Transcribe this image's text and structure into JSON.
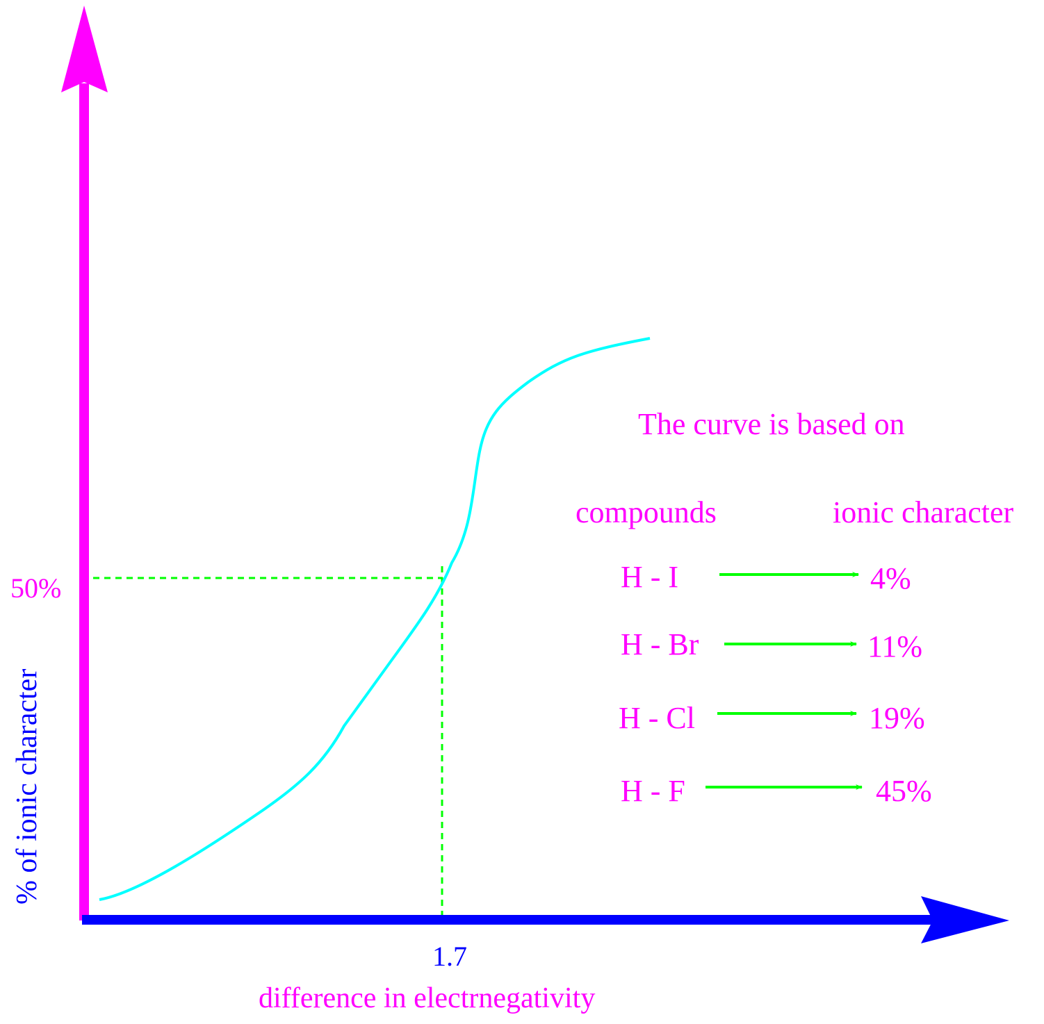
{
  "axes": {
    "y_label": "% of ionic character",
    "x_label": "difference in electrnegativity",
    "y_marker": "50%",
    "x_marker": "1.7"
  },
  "note": {
    "title": "The curve is based on",
    "col_compounds": "compounds",
    "col_ionic": "ionic character",
    "rows": [
      {
        "compound": "H - I",
        "value": "4%"
      },
      {
        "compound": "H - Br",
        "value": "11%"
      },
      {
        "compound": "H - Cl",
        "value": "19%"
      },
      {
        "compound": "H - F",
        "value": "45%"
      }
    ]
  },
  "colors": {
    "y_axis": "#ff00ff",
    "x_axis": "#0000ff",
    "curve": "#00ffff",
    "guides": "#00ff00",
    "text": "#ff00ff"
  }
}
